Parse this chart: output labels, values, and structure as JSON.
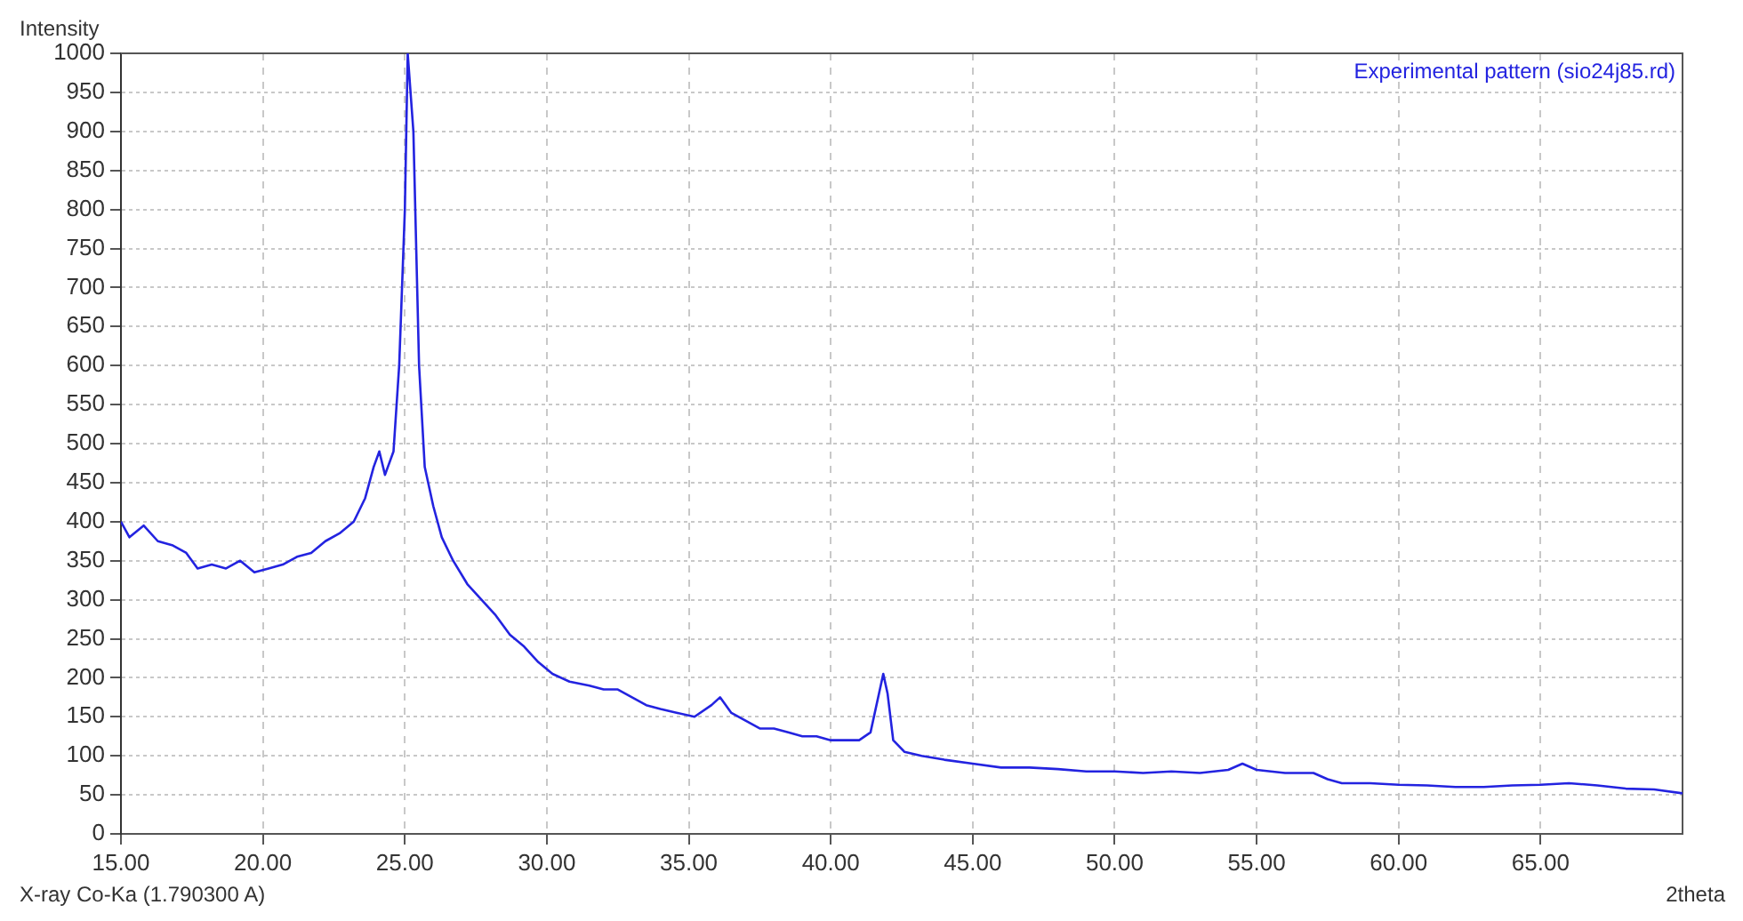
{
  "chart_data": {
    "type": "line",
    "xlabel": "2theta",
    "ylabel": "Intensity",
    "annotations": [
      "X-ray Co-Ka (1.790300 A)"
    ],
    "xlim": [
      15,
      70
    ],
    "xticks": [
      {
        "value": 15,
        "label": "15.00"
      },
      {
        "value": 20,
        "label": "20.00"
      },
      {
        "value": 25,
        "label": "25.00"
      },
      {
        "value": 30,
        "label": "30.00"
      },
      {
        "value": 35,
        "label": "35.00"
      },
      {
        "value": 40,
        "label": "40.00"
      },
      {
        "value": 45,
        "label": "45.00"
      },
      {
        "value": 50,
        "label": "50.00"
      },
      {
        "value": 55,
        "label": "55.00"
      },
      {
        "value": 60,
        "label": "60.00"
      },
      {
        "value": 65,
        "label": "65.00"
      }
    ],
    "ylim": [
      0,
      1000
    ],
    "yticks": [
      0,
      50,
      100,
      150,
      200,
      250,
      300,
      350,
      400,
      450,
      500,
      550,
      600,
      650,
      700,
      750,
      800,
      850,
      900,
      950,
      1000
    ],
    "grid": true,
    "legend": "top right",
    "marker": "none",
    "line_style": "solid",
    "x": [
      15.0,
      15.3,
      15.8,
      16.3,
      16.8,
      17.3,
      17.7,
      18.2,
      18.7,
      19.2,
      19.7,
      20.2,
      20.7,
      21.2,
      21.7,
      22.2,
      22.7,
      23.2,
      23.6,
      23.9,
      24.1,
      24.3,
      24.6,
      24.8,
      25.0,
      25.1,
      25.3,
      25.5,
      25.7,
      26.0,
      26.3,
      26.7,
      27.2,
      27.7,
      28.2,
      28.7,
      29.2,
      29.7,
      30.2,
      30.8,
      31.5,
      32.0,
      32.5,
      33.0,
      33.5,
      34.0,
      34.6,
      35.2,
      35.8,
      36.1,
      36.5,
      37.0,
      37.5,
      38.0,
      38.5,
      39.0,
      39.5,
      40.0,
      40.5,
      41.0,
      41.4,
      41.7,
      41.85,
      42.0,
      42.2,
      42.6,
      43.2,
      44.0,
      45.0,
      46.0,
      47.0,
      48.0,
      49.0,
      50.0,
      51.0,
      52.0,
      53.0,
      54.0,
      54.5,
      55.0,
      56.0,
      57.0,
      57.5,
      58.0,
      59.0,
      60.0,
      61.0,
      62.0,
      63.0,
      64.0,
      65.0,
      66.0,
      67.0,
      68.0,
      69.0,
      70.0
    ],
    "series": [
      {
        "name": "Experimental pattern (sio24j85.rd)",
        "color": "#2323e0",
        "values": [
          400,
          380,
          395,
          375,
          370,
          360,
          340,
          345,
          340,
          350,
          335,
          340,
          345,
          355,
          360,
          375,
          385,
          400,
          430,
          470,
          490,
          460,
          490,
          600,
          800,
          1000,
          900,
          600,
          470,
          420,
          380,
          350,
          320,
          300,
          280,
          255,
          240,
          220,
          205,
          195,
          190,
          185,
          185,
          175,
          165,
          160,
          155,
          150,
          165,
          175,
          155,
          145,
          135,
          135,
          130,
          125,
          125,
          120,
          120,
          120,
          130,
          180,
          205,
          180,
          120,
          105,
          100,
          95,
          90,
          85,
          85,
          83,
          80,
          80,
          78,
          80,
          78,
          82,
          90,
          82,
          78,
          78,
          70,
          65,
          65,
          63,
          62,
          60,
          60,
          62,
          63,
          65,
          62,
          58,
          57,
          52
        ]
      }
    ]
  }
}
